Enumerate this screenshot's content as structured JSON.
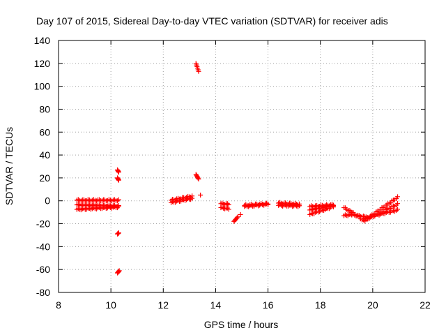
{
  "chart_data": {
    "type": "scatter",
    "title": "Day 107 of 2015, Sidereal Day-to-day VTEC variation (SDTVAR) for receiver adis",
    "xlabel": "GPS time / hours",
    "ylabel": "SDTVAR / TECUs",
    "xlim": [
      8,
      22
    ],
    "ylim": [
      -80,
      140
    ],
    "xticks": [
      "8",
      "10",
      "12",
      "14",
      "16",
      "18",
      "20",
      "22"
    ],
    "yticks": [
      "-80",
      "-60",
      "-40",
      "-20",
      "0",
      "20",
      "40",
      "60",
      "80",
      "100",
      "120",
      "140"
    ],
    "grid": true,
    "marker": "+",
    "color": "#ff0000",
    "bands": [
      {
        "x": [
          8.7,
          10.3
        ],
        "y": [
          0.5,
          0.5
        ]
      },
      {
        "x": [
          8.7,
          10.3
        ],
        "y": [
          -3.5,
          -4.5
        ]
      },
      {
        "x": [
          8.7,
          10.3
        ],
        "y": [
          -7.5,
          -5.5
        ]
      },
      {
        "x": [
          12.3,
          13.1
        ],
        "y": [
          0.5,
          4.0
        ]
      },
      {
        "x": [
          12.3,
          13.1
        ],
        "y": [
          -1.5,
          2.0
        ]
      },
      {
        "x": [
          14.2,
          14.5
        ],
        "y": [
          -2.5,
          -3.0
        ]
      },
      {
        "x": [
          14.2,
          14.5
        ],
        "y": [
          -6.0,
          -7.0
        ]
      },
      {
        "x": [
          15.1,
          16.0
        ],
        "y": [
          -5.0,
          -3.0
        ]
      },
      {
        "x": [
          15.1,
          16.0
        ],
        "y": [
          -4.0,
          -2.5
        ]
      },
      {
        "x": [
          16.4,
          17.2
        ],
        "y": [
          -2.0,
          -3.0
        ]
      },
      {
        "x": [
          16.4,
          17.2
        ],
        "y": [
          -4.0,
          -4.5
        ]
      },
      {
        "x": [
          17.6,
          18.5
        ],
        "y": [
          -12.0,
          -5.0
        ]
      },
      {
        "x": [
          17.6,
          18.5
        ],
        "y": [
          -8.0,
          -4.0
        ]
      },
      {
        "x": [
          17.6,
          18.5
        ],
        "y": [
          -5.0,
          -3.5
        ]
      },
      {
        "x": [
          18.9,
          19.2
        ],
        "y": [
          -6.0,
          -10.0
        ]
      },
      {
        "x": [
          18.9,
          19.2
        ],
        "y": [
          -13.0,
          -12.0
        ]
      },
      {
        "x": [
          19.2,
          19.7
        ],
        "y": [
          -10.0,
          -18.0
        ]
      },
      {
        "x": [
          19.2,
          19.7
        ],
        "y": [
          -12.0,
          -14.0
        ]
      },
      {
        "x": [
          19.7,
          20.95
        ],
        "y": [
          -17.0,
          3.0
        ]
      },
      {
        "x": [
          19.7,
          20.95
        ],
        "y": [
          -17.0,
          -3.0
        ]
      },
      {
        "x": [
          19.7,
          20.95
        ],
        "y": [
          -15.0,
          -8.0
        ]
      }
    ],
    "clusters": [
      {
        "x": [
          10.25,
          10.3
        ],
        "y": [
          27,
          25
        ]
      },
      {
        "x": [
          10.25,
          10.3
        ],
        "y": [
          20,
          18
        ]
      },
      {
        "x": [
          10.25,
          10.3
        ],
        "y": [
          -29,
          -28
        ]
      },
      {
        "x": [
          10.25,
          10.32
        ],
        "y": [
          -63,
          -61
        ]
      },
      {
        "x": [
          13.25,
          13.35
        ],
        "y": [
          120,
          113
        ]
      },
      {
        "x": [
          13.25,
          13.35
        ],
        "y": [
          23,
          19
        ]
      },
      {
        "x": [
          14.7,
          14.85
        ],
        "y": [
          -18,
          -14
        ]
      }
    ],
    "points": [
      {
        "x": 13.42,
        "y": 5
      },
      {
        "x": 14.95,
        "y": -12
      }
    ]
  }
}
